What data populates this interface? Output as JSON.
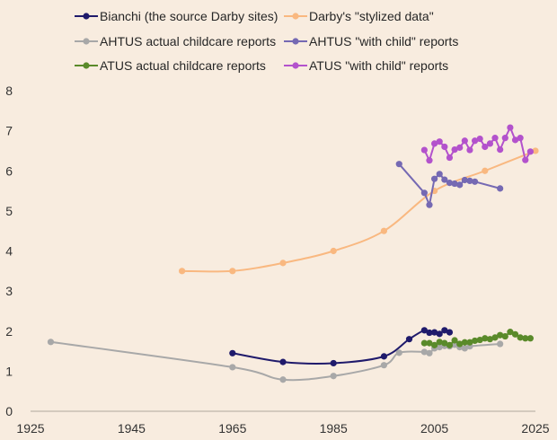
{
  "chart_data": {
    "type": "line",
    "title": "",
    "xlabel": "",
    "ylabel": "",
    "xlim": [
      1925,
      2025
    ],
    "ylim": [
      0,
      8
    ],
    "xticks": [
      1925,
      1945,
      1965,
      1985,
      2005,
      2025
    ],
    "yticks": [
      0,
      1,
      2,
      3,
      4,
      5,
      6,
      7,
      8
    ],
    "grid": false,
    "legend_position": "top",
    "series": [
      {
        "name": "Bianchi (the source Darby sites)",
        "color": "#1f1a6b",
        "smooth": true,
        "points": [
          [
            1965,
            1.45
          ],
          [
            1975,
            1.23
          ],
          [
            1985,
            1.2
          ],
          [
            1995,
            1.37
          ],
          [
            2000,
            1.8
          ],
          [
            2003,
            2.02
          ],
          [
            2004,
            1.96
          ],
          [
            2005,
            1.97
          ],
          [
            2006,
            1.93
          ],
          [
            2007,
            2.02
          ],
          [
            2008,
            1.97
          ]
        ]
      },
      {
        "name": "Darby's \"stylized data\"",
        "color": "#f9b880",
        "smooth": true,
        "points": [
          [
            1955,
            3.5
          ],
          [
            1965,
            3.5
          ],
          [
            1975,
            3.7
          ],
          [
            1985,
            4.0
          ],
          [
            1995,
            4.5
          ],
          [
            2005,
            5.5
          ],
          [
            2015,
            6.0
          ],
          [
            2025,
            6.5
          ]
        ]
      },
      {
        "name": "AHTUS actual childcare reports",
        "color": "#a8a8a8",
        "smooth": true,
        "points": [
          [
            1929,
            1.73
          ],
          [
            1965,
            1.1
          ],
          [
            1975,
            0.79
          ],
          [
            1985,
            0.88
          ],
          [
            1995,
            1.15
          ],
          [
            1998,
            1.46
          ],
          [
            2003,
            1.48
          ],
          [
            2004,
            1.45
          ],
          [
            2005,
            1.57
          ],
          [
            2006,
            1.6
          ],
          [
            2007,
            1.63
          ],
          [
            2008,
            1.62
          ],
          [
            2009,
            1.66
          ],
          [
            2010,
            1.6
          ],
          [
            2011,
            1.57
          ],
          [
            2012,
            1.62
          ],
          [
            2018,
            1.68
          ]
        ]
      },
      {
        "name": "AHTUS \"with child\" reports",
        "color": "#7569b3",
        "smooth": false,
        "points": [
          [
            1998,
            6.17
          ],
          [
            2003,
            5.45
          ],
          [
            2004,
            5.15
          ],
          [
            2005,
            5.8
          ],
          [
            2006,
            5.92
          ],
          [
            2007,
            5.78
          ],
          [
            2008,
            5.7
          ],
          [
            2009,
            5.68
          ],
          [
            2010,
            5.65
          ],
          [
            2011,
            5.77
          ],
          [
            2012,
            5.75
          ],
          [
            2013,
            5.73
          ],
          [
            2018,
            5.56
          ]
        ]
      },
      {
        "name": "ATUS actual childcare reports",
        "color": "#5a8a2a",
        "smooth": false,
        "points": [
          [
            2003,
            1.7
          ],
          [
            2004,
            1.7
          ],
          [
            2005,
            1.65
          ],
          [
            2006,
            1.73
          ],
          [
            2007,
            1.7
          ],
          [
            2008,
            1.65
          ],
          [
            2009,
            1.77
          ],
          [
            2010,
            1.68
          ],
          [
            2011,
            1.72
          ],
          [
            2012,
            1.72
          ],
          [
            2013,
            1.76
          ],
          [
            2014,
            1.78
          ],
          [
            2015,
            1.82
          ],
          [
            2016,
            1.8
          ],
          [
            2017,
            1.84
          ],
          [
            2018,
            1.9
          ],
          [
            2019,
            1.87
          ],
          [
            2020,
            1.98
          ],
          [
            2021,
            1.92
          ],
          [
            2022,
            1.84
          ],
          [
            2023,
            1.82
          ],
          [
            2024,
            1.82
          ]
        ]
      },
      {
        "name": "ATUS \"with child\" reports",
        "color": "#b352cc",
        "smooth": false,
        "points": [
          [
            2003,
            6.52
          ],
          [
            2004,
            6.26
          ],
          [
            2005,
            6.68
          ],
          [
            2006,
            6.73
          ],
          [
            2007,
            6.6
          ],
          [
            2008,
            6.33
          ],
          [
            2009,
            6.53
          ],
          [
            2010,
            6.58
          ],
          [
            2011,
            6.75
          ],
          [
            2012,
            6.52
          ],
          [
            2013,
            6.75
          ],
          [
            2014,
            6.8
          ],
          [
            2015,
            6.6
          ],
          [
            2016,
            6.68
          ],
          [
            2017,
            6.82
          ],
          [
            2018,
            6.53
          ],
          [
            2019,
            6.82
          ],
          [
            2020,
            7.08
          ],
          [
            2021,
            6.77
          ],
          [
            2022,
            6.82
          ],
          [
            2023,
            6.27
          ],
          [
            2024,
            6.48
          ]
        ]
      }
    ]
  }
}
